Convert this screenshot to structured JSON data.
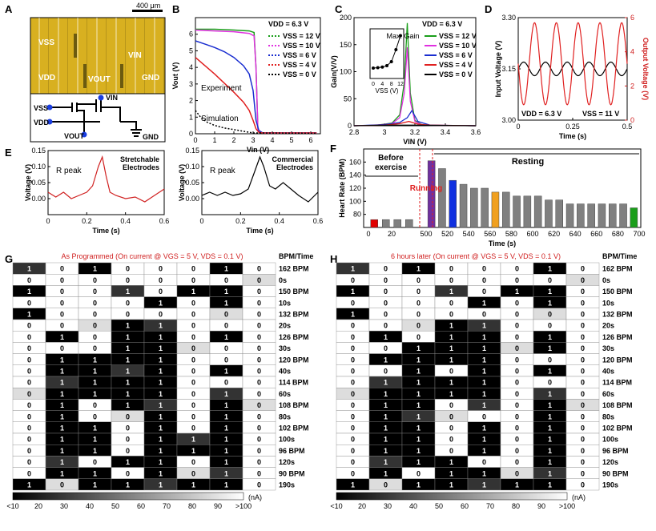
{
  "panel_letters": [
    "A",
    "B",
    "C",
    "D",
    "E",
    "F",
    "G",
    "H"
  ],
  "panelA": {
    "scale_bar": "400 μm",
    "photo_labels": [
      "VSS",
      "VIN",
      "VDD",
      "VOUT",
      "GND"
    ],
    "schematic_labels": [
      "VSS",
      "VIN",
      "VDD",
      "VOUT",
      "GND"
    ]
  },
  "chart_data": [
    {
      "panel": "B",
      "type": "line",
      "xlabel": "Vin (V)",
      "ylabel": "Vout (V)",
      "xlim": [
        0,
        6.5
      ],
      "ylim": [
        0,
        7
      ],
      "xticks": [
        0,
        1,
        2,
        3,
        4,
        5,
        6
      ],
      "yticks": [
        0,
        1,
        2,
        3,
        4,
        5,
        6
      ],
      "header": "VDD = 6.3 V",
      "annotations": [
        "Experiment",
        "Simulation"
      ],
      "series": [
        {
          "name": "VSS = 12 V",
          "color": "#1a9e1a",
          "x": [
            0,
            1,
            2,
            2.8,
            3.05,
            3.15,
            3.25,
            3.5,
            6.3
          ],
          "y": [
            6.3,
            6.3,
            6.25,
            6.2,
            6.1,
            4,
            0.2,
            0.05,
            0.05
          ]
        },
        {
          "name": "VSS = 10 V",
          "color": "#e030e0",
          "x": [
            0,
            1,
            2,
            2.8,
            3.05,
            3.15,
            3.25,
            3.5,
            6.3
          ],
          "y": [
            6.25,
            6.2,
            6.15,
            6.05,
            5.9,
            4,
            0.2,
            0.05,
            0.05
          ]
        },
        {
          "name": "VSS = 6 V",
          "color": "#1a2ed0",
          "x": [
            0,
            0.5,
            1,
            1.5,
            2,
            2.5,
            2.8,
            3.0,
            3.15,
            3.3,
            3.5,
            6.3
          ],
          "y": [
            5.6,
            5.4,
            5.2,
            4.95,
            4.6,
            4.1,
            3.6,
            2.6,
            0.8,
            0.2,
            0.05,
            0.05
          ]
        },
        {
          "name": "VSS = 4 V",
          "color": "#e02020",
          "x": [
            0,
            0.5,
            1,
            1.5,
            2,
            2.5,
            2.8,
            3.0,
            3.15,
            3.3,
            3.5,
            6.3
          ],
          "y": [
            4.6,
            4.1,
            3.6,
            3.05,
            2.5,
            1.9,
            1.4,
            0.8,
            0.3,
            0.08,
            0.05,
            0.05
          ]
        },
        {
          "name": "VSS = 0 V",
          "color": "#000000",
          "x": [
            0,
            0.3,
            0.6,
            1,
            1.5,
            2,
            2.5,
            3,
            6.3
          ],
          "y": [
            1.4,
            0.95,
            0.7,
            0.5,
            0.35,
            0.25,
            0.15,
            0.05,
            0.03
          ]
        }
      ]
    },
    {
      "panel": "C",
      "type": "line",
      "xlabel": "VIN (V)",
      "ylabel": "Gain(V/V)",
      "xlim": [
        2.8,
        3.6
      ],
      "ylim": [
        0,
        200
      ],
      "xticks": [
        2.8,
        3.0,
        3.2,
        3.4,
        3.6
      ],
      "yticks": [
        0,
        50,
        100,
        150,
        200
      ],
      "header": "VDD = 6.3 V",
      "series": [
        {
          "name": "VSS = 12 V",
          "color": "#1a9e1a",
          "x": [
            2.8,
            2.95,
            3.05,
            3.1,
            3.13,
            3.15,
            3.17,
            3.2,
            3.25,
            3.6
          ],
          "y": [
            0,
            1,
            5,
            20,
            80,
            190,
            60,
            10,
            1,
            0
          ]
        },
        {
          "name": "VSS = 10 V",
          "color": "#e030e0",
          "x": [
            2.8,
            2.95,
            3.05,
            3.1,
            3.13,
            3.15,
            3.17,
            3.2,
            3.25,
            3.6
          ],
          "y": [
            0,
            1,
            4,
            15,
            60,
            145,
            45,
            8,
            1,
            0
          ]
        },
        {
          "name": "VSS = 6 V",
          "color": "#1a2ed0",
          "x": [
            2.8,
            3.0,
            3.1,
            3.15,
            3.18,
            3.22,
            3.3,
            3.6
          ],
          "y": [
            0,
            2,
            6,
            15,
            28,
            8,
            1,
            0
          ]
        },
        {
          "name": "VSS = 4 V",
          "color": "#e02020",
          "x": [
            2.8,
            3.0,
            3.1,
            3.16,
            3.22,
            3.3,
            3.6
          ],
          "y": [
            0,
            1,
            4,
            8,
            3,
            1,
            0
          ]
        },
        {
          "name": "VSS = 0 V",
          "color": "#000000",
          "x": [
            2.8,
            3.0,
            3.2,
            3.6
          ],
          "y": [
            0,
            1,
            1,
            0
          ]
        }
      ],
      "inset": {
        "title": "Max. Gain",
        "xlabel": "VSS (V)",
        "xticks": [
          0,
          4,
          8,
          12
        ],
        "x": [
          0,
          2,
          4,
          6,
          8,
          10,
          12
        ],
        "y": [
          28,
          30,
          33,
          40,
          60,
          120,
          190
        ]
      }
    },
    {
      "panel": "D",
      "type": "line",
      "xlabel": "Time (s)",
      "ylabel": "Input Voltage (V)",
      "y2label": "Output Voltage (V)",
      "xlim": [
        0,
        0.5
      ],
      "ylim": [
        3.0,
        3.3
      ],
      "y2lim": [
        0,
        6
      ],
      "xticks": [
        0,
        0.25,
        0.5
      ],
      "yticks": [
        3.0,
        3.15,
        3.3
      ],
      "y2ticks": [
        0,
        2,
        4,
        6
      ],
      "annotations": [
        "VDD = 6.3 V",
        "VSS = 11 V"
      ],
      "series": [
        {
          "name": "Input",
          "color": "#000000",
          "axis": "left",
          "amplitude": 0.02,
          "offset": 3.15,
          "frequency_hz": 10
        },
        {
          "name": "Output",
          "color": "#e02020",
          "axis": "right",
          "amplitude": 2.4,
          "offset": 3.3,
          "frequency_hz": 10,
          "phase_inverted": true
        }
      ]
    },
    {
      "panel": "E1",
      "type": "line",
      "xlabel": "Time (s)",
      "ylabel": "Voltage (V)",
      "xlim": [
        0,
        0.6
      ],
      "ylim": [
        -0.05,
        0.15
      ],
      "xticks": [
        0,
        0.2,
        0.4,
        0.6
      ],
      "yticks": [
        0.0,
        0.05,
        0.1,
        0.15
      ],
      "annotations": [
        "R peak",
        "Stretchable Electrodes"
      ],
      "series": [
        {
          "color": "#d02020",
          "x": [
            0,
            0.04,
            0.08,
            0.12,
            0.16,
            0.2,
            0.23,
            0.26,
            0.28,
            0.3,
            0.32,
            0.35,
            0.4,
            0.45,
            0.5,
            0.55,
            0.6
          ],
          "y": [
            0.02,
            0.005,
            0.02,
            0.0,
            0.01,
            0.02,
            0.04,
            0.1,
            0.13,
            0.07,
            0.02,
            0.01,
            0.0,
            0.005,
            -0.01,
            0.01,
            0.03
          ]
        }
      ]
    },
    {
      "panel": "E2",
      "type": "line",
      "xlabel": "Time (s)",
      "ylabel": "Voltage (V)",
      "xlim": [
        0,
        0.6
      ],
      "ylim": [
        -0.05,
        0.15
      ],
      "xticks": [
        0,
        0.2,
        0.4,
        0.6
      ],
      "yticks": [
        0.0,
        0.05,
        0.1,
        0.15
      ],
      "annotations": [
        "R peak",
        "Commercial Electrodes"
      ],
      "series": [
        {
          "color": "#000000",
          "x": [
            0,
            0.04,
            0.08,
            0.12,
            0.16,
            0.2,
            0.24,
            0.27,
            0.3,
            0.32,
            0.35,
            0.38,
            0.42,
            0.46,
            0.5,
            0.55,
            0.6
          ],
          "y": [
            0.01,
            0.02,
            0.01,
            0.02,
            0.01,
            0.015,
            0.03,
            0.08,
            0.13,
            0.1,
            0.04,
            0.03,
            0.05,
            0.03,
            0.01,
            -0.01,
            0.02
          ]
        }
      ]
    },
    {
      "panel": "F",
      "type": "bar",
      "xlabel": "Time (s)",
      "ylabel": "Heart Rate (BPM)",
      "ylim": [
        60,
        180
      ],
      "yticks": [
        80,
        100,
        120,
        140,
        160
      ],
      "xticks": [
        "0",
        "20",
        "500",
        "520",
        "540",
        "560",
        "580",
        "600",
        "620",
        "640",
        "660",
        "680",
        "700"
      ],
      "phases": [
        "Before exercise",
        "Running",
        "Resting"
      ],
      "x": [
        5,
        15,
        25,
        35,
        505,
        515,
        525,
        535,
        545,
        555,
        565,
        575,
        585,
        595,
        605,
        615,
        625,
        635,
        645,
        655,
        665,
        675,
        685,
        695
      ],
      "values": [
        72,
        72,
        72,
        72,
        162,
        150,
        132,
        126,
        120,
        120,
        114,
        114,
        108,
        108,
        108,
        102,
        102,
        96,
        96,
        96,
        96,
        96,
        96,
        90
      ],
      "colors": [
        "#e00000",
        "#808080",
        "#808080",
        "#808080",
        "#7030a0",
        "#808080",
        "#1030e0",
        "#808080",
        "#808080",
        "#808080",
        "#f0a020",
        "#808080",
        "#808080",
        "#808080",
        "#808080",
        "#808080",
        "#808080",
        "#808080",
        "#808080",
        "#808080",
        "#808080",
        "#808080",
        "#808080",
        "#1a9e1a"
      ]
    },
    {
      "panel": "G",
      "type": "heatmap",
      "title": "As Programmed (On current @ VGS = 5 V, VDS = 0.1 V)",
      "row_header": "BPM/Time",
      "row_labels": [
        "162 BPM",
        "0s",
        "150 BPM",
        "10s",
        "132 BPM",
        "20s",
        "126 BPM",
        "30s",
        "120 BPM",
        "40s",
        "114 BPM",
        "60s",
        "108 BPM",
        "80s",
        "102 BPM",
        "100s",
        "96 BPM",
        "120s",
        "90 BPM",
        "190s"
      ],
      "values": [
        [
          1,
          0,
          1,
          0,
          0,
          0,
          1,
          0
        ],
        [
          0,
          0,
          0,
          0,
          0,
          0,
          0,
          0
        ],
        [
          1,
          0,
          0,
          1,
          0,
          1,
          1,
          0
        ],
        [
          0,
          0,
          0,
          0,
          1,
          0,
          1,
          0
        ],
        [
          1,
          0,
          0,
          0,
          0,
          0,
          0,
          0
        ],
        [
          0,
          0,
          0,
          1,
          1,
          0,
          0,
          0
        ],
        [
          0,
          1,
          0,
          1,
          1,
          0,
          1,
          0
        ],
        [
          0,
          0,
          0,
          1,
          1,
          0,
          0,
          0
        ],
        [
          0,
          1,
          1,
          1,
          1,
          0,
          0,
          0
        ],
        [
          0,
          1,
          1,
          1,
          1,
          0,
          1,
          0
        ],
        [
          0,
          1,
          1,
          1,
          1,
          0,
          0,
          0
        ],
        [
          0,
          1,
          1,
          1,
          1,
          0,
          1,
          0
        ],
        [
          0,
          1,
          0,
          1,
          1,
          0,
          1,
          0
        ],
        [
          0,
          1,
          0,
          0,
          1,
          0,
          1,
          0
        ],
        [
          0,
          1,
          1,
          0,
          1,
          0,
          1,
          0
        ],
        [
          0,
          1,
          1,
          0,
          1,
          1,
          1,
          0
        ],
        [
          0,
          1,
          1,
          0,
          1,
          1,
          1,
          0
        ],
        [
          0,
          1,
          0,
          1,
          1,
          0,
          1,
          0
        ],
        [
          0,
          1,
          1,
          0,
          1,
          0,
          1,
          0
        ],
        [
          1,
          0,
          1,
          1,
          1,
          1,
          1,
          0
        ]
      ],
      "colorbar": {
        "ticks": [
          "<10",
          "20",
          "30",
          "40",
          "50",
          "60",
          "70",
          "80",
          "90",
          ">100"
        ],
        "unit": "(nA)"
      }
    },
    {
      "panel": "H",
      "type": "heatmap",
      "title": "6 hours later (On current @ VGS = 5 V, VDS = 0.1 V)",
      "row_header": "BPM/Time",
      "row_labels": [
        "162 BPM",
        "0s",
        "150 BPM",
        "10s",
        "132 BPM",
        "20s",
        "126 BPM",
        "30s",
        "120 BPM",
        "40s",
        "114 BPM",
        "60s",
        "108 BPM",
        "80s",
        "102 BPM",
        "100s",
        "96 BPM",
        "120s",
        "90 BPM",
        "190s"
      ],
      "values": [
        [
          1,
          0,
          1,
          0,
          0,
          0,
          1,
          0
        ],
        [
          0,
          0,
          0,
          0,
          0,
          0,
          0,
          0
        ],
        [
          1,
          0,
          0,
          1,
          0,
          1,
          1,
          0
        ],
        [
          0,
          0,
          0,
          0,
          1,
          0,
          1,
          0
        ],
        [
          1,
          0,
          0,
          0,
          0,
          0,
          0,
          0
        ],
        [
          0,
          0,
          0,
          1,
          1,
          0,
          0,
          0
        ],
        [
          0,
          1,
          0,
          1,
          1,
          0,
          1,
          0
        ],
        [
          0,
          0,
          1,
          1,
          1,
          0,
          1,
          0
        ],
        [
          0,
          1,
          1,
          1,
          1,
          0,
          0,
          0
        ],
        [
          0,
          0,
          1,
          0,
          1,
          0,
          1,
          0
        ],
        [
          0,
          1,
          1,
          1,
          1,
          0,
          0,
          0
        ],
        [
          0,
          1,
          1,
          1,
          1,
          0,
          1,
          0
        ],
        [
          0,
          1,
          1,
          0,
          1,
          0,
          1,
          0
        ],
        [
          0,
          1,
          1,
          0,
          0,
          0,
          1,
          0
        ],
        [
          0,
          1,
          1,
          0,
          1,
          0,
          1,
          0
        ],
        [
          0,
          1,
          1,
          0,
          1,
          0,
          1,
          0
        ],
        [
          0,
          1,
          1,
          0,
          1,
          0,
          1,
          0
        ],
        [
          0,
          1,
          1,
          1,
          0,
          0,
          1,
          0
        ],
        [
          0,
          1,
          0,
          1,
          1,
          0,
          1,
          0
        ],
        [
          1,
          0,
          1,
          1,
          1,
          1,
          1,
          0
        ]
      ],
      "colorbar": {
        "ticks": [
          "<10",
          "20",
          "30",
          "40",
          "50",
          "60",
          "70",
          "80",
          "90",
          ">100"
        ],
        "unit": "(nA)"
      }
    }
  ]
}
